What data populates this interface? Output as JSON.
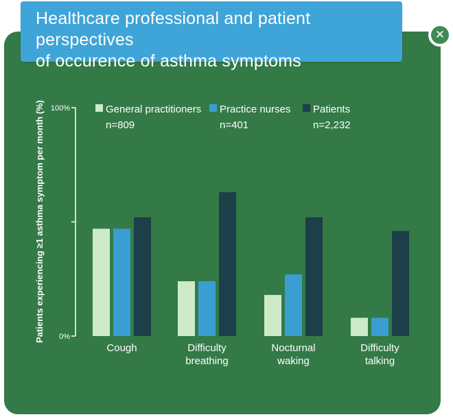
{
  "title_line1": "Healthcare professional and patient perspectives",
  "title_line2": "of occurence of asthma symptoms",
  "close_icon": "close-icon",
  "chart_data": {
    "type": "bar",
    "ylabel": "Patients experiencing ≥1 asthma symptom per month (%)",
    "ylim": [
      0,
      100
    ],
    "yticks": [
      {
        "value": 0,
        "label": "0%"
      },
      {
        "value": 50,
        "label": ""
      },
      {
        "value": 100,
        "label": "100%"
      }
    ],
    "categories": [
      {
        "line1": "Cough",
        "line2": ""
      },
      {
        "line1": "Difficulty",
        "line2": "breathing"
      },
      {
        "line1": "Nocturnal",
        "line2": "waking"
      },
      {
        "line1": "Difficulty",
        "line2": "talking"
      }
    ],
    "series": [
      {
        "name": "General practitioners",
        "n": "n=809",
        "color": "#cdebc8",
        "values": [
          47,
          24,
          18,
          8
        ]
      },
      {
        "name": "Practice nurses",
        "n": "n=401",
        "color": "#3a9ed3",
        "values": [
          47,
          24,
          27,
          8
        ]
      },
      {
        "name": "Patients",
        "n": "n=2,232",
        "color": "#1c3f4a",
        "values": [
          52,
          63,
          52,
          46
        ]
      }
    ],
    "legend_position": "top"
  }
}
